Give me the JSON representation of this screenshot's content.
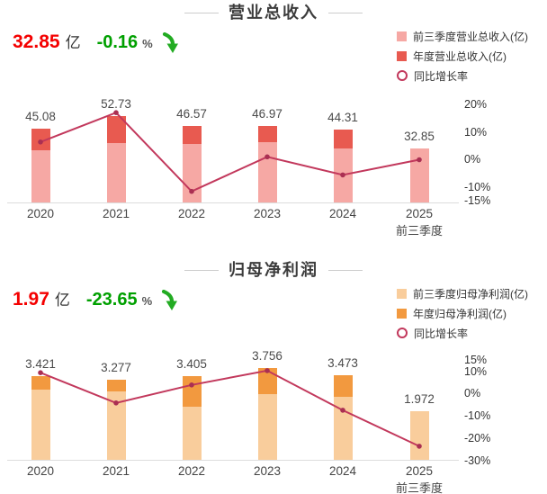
{
  "sections": [
    {
      "stat_value": "32.85",
      "stat_unit": "亿",
      "stat_change": "-0.16",
      "stat_pct": "%",
      "direction": "down",
      "stat_value_color": "#f40000",
      "stat_change_color": "#00a000",
      "arrow_color": "#22ab22"
    },
    {
      "stat_value": "1.97",
      "stat_unit": "亿",
      "stat_change": "-23.65",
      "stat_pct": "%",
      "direction": "down",
      "stat_value_color": "#f40000",
      "stat_change_color": "#00a000",
      "arrow_color": "#22ab22"
    }
  ],
  "chart_data": [
    {
      "type": "bar",
      "subtype": "stacked-bar-with-line",
      "title": "营业总收入",
      "categories": [
        "2020",
        "2021",
        "2022",
        "2023",
        "2024",
        "2025"
      ],
      "category_sublabels": [
        "",
        "",
        "",
        "",
        "",
        "前三季度"
      ],
      "bar_total_labels": [
        "45.08",
        "52.73",
        "46.57",
        "46.97",
        "44.31",
        "32.85"
      ],
      "series": [
        {
          "name": "前三季度营业总收入(亿)",
          "type": "bar",
          "stack": true,
          "color": "#f6a8a4",
          "values": [
            31.9,
            36.4,
            35.7,
            36.8,
            33.0,
            32.85
          ],
          "note": "lower segment; 2020-2024 values estimated from bar geometry, only totals are labeled"
        },
        {
          "name": "年度营业总收入(亿)",
          "type": "bar",
          "stack": true,
          "color": "#e85a50",
          "values": [
            45.08,
            52.73,
            46.57,
            46.97,
            44.31,
            null
          ],
          "note": "values are annual totals (full bar height); upper cap = annual minus 前三季度"
        },
        {
          "name": "同比增长率",
          "type": "line",
          "color": "#c2385c",
          "values_pct": [
            6.3,
            17.0,
            -11.7,
            0.9,
            -5.7,
            -0.16
          ],
          "note": "read from right axis; 2025 value matches headline -0.16%"
        }
      ],
      "y_axis_right": {
        "ticks": [
          "20%",
          "10%",
          "0%",
          "-10%",
          "-15%"
        ],
        "tick_pcts": [
          20,
          10,
          0,
          -10,
          -15
        ]
      },
      "legend_position": "top-right",
      "grid": false
    },
    {
      "type": "bar",
      "subtype": "stacked-bar-with-line",
      "title": "归母净利润",
      "categories": [
        "2020",
        "2021",
        "2022",
        "2023",
        "2024",
        "2025"
      ],
      "category_sublabels": [
        "",
        "",
        "",
        "",
        "",
        "前三季度"
      ],
      "bar_total_labels": [
        "3.421",
        "3.277",
        "3.405",
        "3.756",
        "3.473",
        "1.972"
      ],
      "series": [
        {
          "name": "前三季度归母净利润(亿)",
          "type": "bar",
          "stack": true,
          "color": "#f9cd9c",
          "values": [
            2.87,
            2.8,
            2.17,
            2.7,
            2.59,
            1.972
          ],
          "note": "lower segment; 2020-2024 values estimated from bar geometry, only totals are labeled"
        },
        {
          "name": "年度归母净利润(亿)",
          "type": "bar",
          "stack": true,
          "color": "#f2993f",
          "values": [
            3.421,
            3.277,
            3.405,
            3.756,
            3.473,
            null
          ],
          "note": "values are annual totals (full bar height); upper cap = annual minus 前三季度"
        },
        {
          "name": "同比增长率",
          "type": "line",
          "color": "#c2385c",
          "values_pct": [
            9.4,
            -4.2,
            3.9,
            10.3,
            -7.5,
            -23.65
          ],
          "note": "read from right axis; 2025 value matches headline -23.65%"
        }
      ],
      "y_axis_right": {
        "ticks": [
          "15%",
          "10%",
          "0%",
          "-10%",
          "-20%",
          "-30%"
        ],
        "tick_pcts": [
          15,
          10,
          0,
          -10,
          -20,
          -30
        ]
      },
      "legend_position": "top-right",
      "grid": false
    }
  ]
}
